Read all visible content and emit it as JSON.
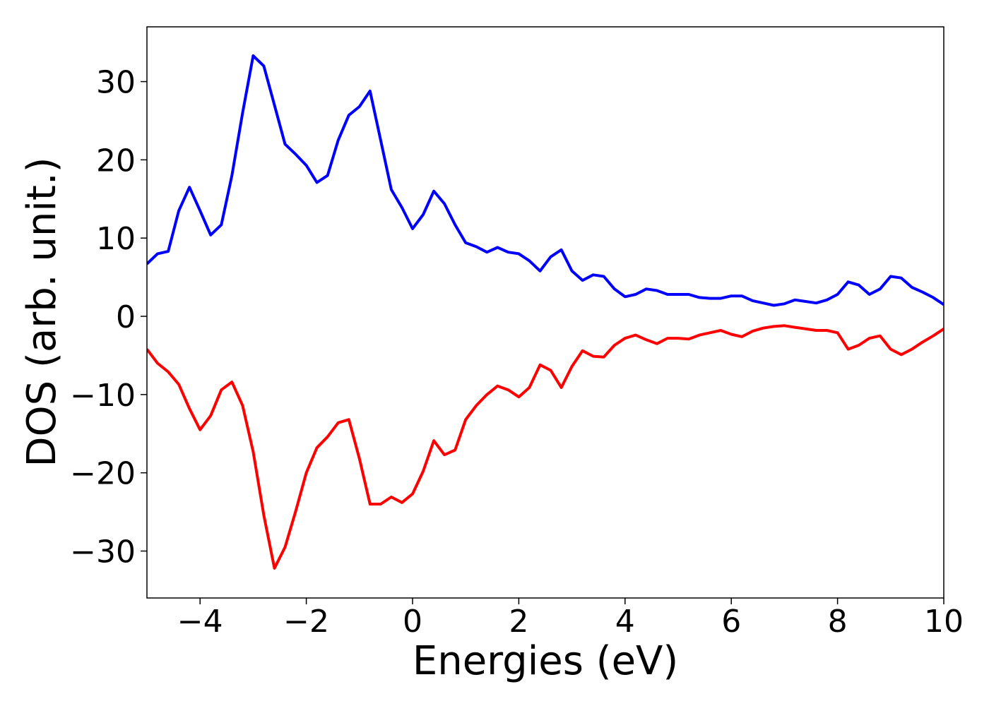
{
  "chart_data": {
    "type": "line",
    "x_label": "Energies (eV)",
    "y_label": "DOS (arb. unit.)",
    "x": [
      -5,
      -4.8,
      -4.6,
      -4.4,
      -4.2,
      -4,
      -3.8,
      -3.6,
      -3.4,
      -3.2,
      -3,
      -2.8,
      -2.6,
      -2.4,
      -2.2,
      -2,
      -1.8,
      -1.6,
      -1.4,
      -1.2,
      -1,
      -0.8,
      -0.6,
      -0.4,
      -0.2,
      0,
      0.2,
      0.4,
      0.6,
      0.8,
      1,
      1.2,
      1.4,
      1.6,
      1.8,
      2,
      2.2,
      2.4,
      2.6,
      2.8,
      3,
      3.2,
      3.4,
      3.6,
      3.8,
      4,
      4.2,
      4.4,
      4.6,
      4.8,
      5,
      5.2,
      5.4,
      5.6,
      5.8,
      6,
      6.2,
      6.4,
      6.6,
      6.8,
      7,
      7.2,
      7.4,
      7.6,
      7.8,
      8,
      8.2,
      8.4,
      8.6,
      8.8,
      9,
      9.2,
      9.4,
      9.6,
      9.8,
      10
    ],
    "series": [
      {
        "color": "#0000ff",
        "values": [
          6.7,
          8.0,
          8.3,
          13.5,
          16.5,
          13.5,
          10.4,
          11.7,
          18,
          26,
          33.3,
          32,
          27,
          22,
          20.7,
          19.3,
          17.1,
          18,
          22.5,
          25.7,
          26.8,
          28.8,
          22.5,
          16.2,
          13.9,
          11.2,
          13,
          16,
          14.4,
          11.7,
          9.4,
          8.9,
          8.2,
          8.8,
          8.2,
          8.0,
          7.1,
          5.8,
          7.6,
          8.5,
          5.8,
          4.6,
          5.3,
          5.1,
          3.5,
          2.5,
          2.8,
          3.5,
          3.3,
          2.8,
          2.8,
          2.8,
          2.4,
          2.3,
          2.3,
          2.6,
          2.6,
          2.0,
          1.7,
          1.4,
          1.6,
          2.1,
          1.9,
          1.7,
          2.1,
          2.8,
          4.4,
          4.0,
          2.8,
          3.5,
          5.1,
          4.9,
          3.7,
          3.1,
          2.4,
          1.5
        ]
      },
      {
        "color": "#ff0000",
        "values": [
          -4.2,
          -6.0,
          -7.1,
          -8.7,
          -11.8,
          -14.5,
          -12.7,
          -9.4,
          -8.4,
          -11.4,
          -17.3,
          -25.4,
          -32.2,
          -29.5,
          -24.9,
          -20,
          -16.8,
          -15.4,
          -13.6,
          -13.2,
          -18.2,
          -24,
          -24,
          -23.1,
          -23.8,
          -22.7,
          -19.8,
          -15.9,
          -17.7,
          -17.1,
          -13.2,
          -11.4,
          -10,
          -8.9,
          -9.4,
          -10.3,
          -9.1,
          -6.2,
          -6.9,
          -9.1,
          -6.4,
          -4.4,
          -5.1,
          -5.2,
          -3.7,
          -2.8,
          -2.4,
          -3.0,
          -3.5,
          -2.8,
          -2.8,
          -2.9,
          -2.4,
          -2.1,
          -1.8,
          -2.3,
          -2.6,
          -1.9,
          -1.5,
          -1.3,
          -1.2,
          -1.4,
          -1.6,
          -1.8,
          -1.8,
          -2.1,
          -4.2,
          -3.7,
          -2.8,
          -2.5,
          -4.2,
          -4.9,
          -4.2,
          -3.3,
          -2.5,
          -1.6
        ]
      }
    ],
    "xlim": [
      -5,
      10
    ],
    "xticks": [
      {
        "value": -4,
        "label": "−4"
      },
      {
        "value": -2,
        "label": "−2"
      },
      0,
      2,
      4,
      6,
      8,
      10
    ],
    "ylim": [
      -36,
      37
    ],
    "yticks": [
      {
        "value": -30,
        "label": "−30"
      },
      {
        "value": -20,
        "label": "−20"
      },
      {
        "value": -10,
        "label": "−10"
      },
      0,
      10,
      20,
      30
    ],
    "grid": false
  }
}
